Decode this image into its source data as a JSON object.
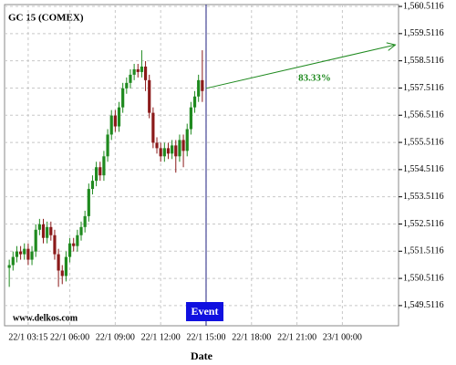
{
  "chart_data": {
    "type": "candlestick",
    "title": "GC 15 (COMEX)",
    "watermark": "www.delkos.com",
    "xlabel": "Date",
    "up_color": "#1f8a1f",
    "down_color": "#8b1a1a",
    "grid": true,
    "xlim": [
      1.69,
      27.71
    ],
    "ylim": [
      1548.77,
      1560.58
    ],
    "xticks": [
      {
        "value": 3.25,
        "label": "22/1 03:15"
      },
      {
        "value": 6,
        "label": "22/1 06:00"
      },
      {
        "value": 9,
        "label": "22/1 09:00"
      },
      {
        "value": 12,
        "label": "22/1 12:00"
      },
      {
        "value": 15,
        "label": "22/1 15:00"
      },
      {
        "value": 18,
        "label": "22/1 18:00"
      },
      {
        "value": 21,
        "label": "22/1 21:00"
      },
      {
        "value": 24,
        "label": "23/1 00:00"
      }
    ],
    "yticks": [
      {
        "value": 1549.5116,
        "label": "1,549.5116"
      },
      {
        "value": 1550.5116,
        "label": "1,550.5116"
      },
      {
        "value": 1551.5116,
        "label": "1,551.5116"
      },
      {
        "value": 1552.5116,
        "label": "1,552.5116"
      },
      {
        "value": 1553.5116,
        "label": "1,553.5116"
      },
      {
        "value": 1554.5116,
        "label": "1,554.5116"
      },
      {
        "value": 1555.5116,
        "label": "1,555.5116"
      },
      {
        "value": 1556.5116,
        "label": "1,556.5116"
      },
      {
        "value": 1557.5116,
        "label": "1,557.5116"
      },
      {
        "value": 1558.5116,
        "label": "1,558.5116"
      },
      {
        "value": 1559.5116,
        "label": "1,559.5116"
      },
      {
        "value": 1560.5116,
        "label": "1,560.5116"
      }
    ],
    "event": {
      "x": 15,
      "label": "Event",
      "color": "#1010e0"
    },
    "forecast": {
      "x": [
        15,
        27.5
      ],
      "y": [
        1557.5,
        1559.1
      ],
      "label": "83.33%",
      "color": "#1f8a1f"
    },
    "x": [
      2,
      2.25,
      2.5,
      2.75,
      3,
      3.25,
      3.5,
      3.75,
      4,
      4.25,
      4.5,
      4.75,
      5,
      5.25,
      5.5,
      5.75,
      6,
      6.25,
      6.5,
      6.75,
      7,
      7.25,
      7.5,
      7.75,
      8,
      8.25,
      8.5,
      8.75,
      9,
      9.25,
      9.5,
      9.75,
      10,
      10.25,
      10.5,
      10.75,
      11,
      11.25,
      11.5,
      11.75,
      12,
      12.25,
      12.5,
      12.75,
      13,
      13.25,
      13.5,
      13.75,
      14,
      14.25,
      14.5,
      14.75
    ],
    "open": [
      1550.9,
      1551.0,
      1551.3,
      1551.5,
      1551.4,
      1551.6,
      1551.2,
      1551.5,
      1552.3,
      1552.5,
      1552.0,
      1552.4,
      1552.1,
      1551.4,
      1550.8,
      1550.6,
      1551.3,
      1551.8,
      1551.7,
      1552.1,
      1552.4,
      1552.8,
      1553.8,
      1554.1,
      1554.6,
      1554.3,
      1555.0,
      1555.8,
      1556.5,
      1556.1,
      1556.8,
      1557.5,
      1557.7,
      1558.0,
      1558.2,
      1558.1,
      1558.3,
      1557.8,
      1556.6,
      1555.5,
      1555.3,
      1555.0,
      1555.3,
      1555.1,
      1555.4,
      1555.0,
      1555.6,
      1555.2,
      1556.0,
      1556.8,
      1557.2,
      1557.8
    ],
    "high": [
      1551.2,
      1551.5,
      1551.7,
      1551.7,
      1551.8,
      1551.8,
      1551.7,
      1552.5,
      1552.7,
      1552.7,
      1552.6,
      1552.6,
      1552.3,
      1551.6,
      1551.0,
      1551.5,
      1552.0,
      1552.0,
      1552.3,
      1552.6,
      1553.0,
      1554.0,
      1554.3,
      1554.8,
      1554.8,
      1555.2,
      1556.0,
      1556.7,
      1556.7,
      1557.0,
      1557.7,
      1557.9,
      1558.2,
      1558.4,
      1558.4,
      1558.9,
      1558.5,
      1558.0,
      1556.8,
      1555.7,
      1555.5,
      1555.5,
      1555.5,
      1555.6,
      1555.6,
      1555.8,
      1555.8,
      1556.2,
      1557.0,
      1557.4,
      1558.0,
      1558.9
    ],
    "low": [
      1550.2,
      1550.8,
      1551.1,
      1551.2,
      1551.2,
      1551.0,
      1551.0,
      1551.3,
      1552.1,
      1551.8,
      1551.8,
      1551.9,
      1551.2,
      1550.2,
      1550.3,
      1550.4,
      1551.1,
      1551.5,
      1551.5,
      1551.9,
      1552.2,
      1552.6,
      1553.6,
      1553.9,
      1554.1,
      1554.1,
      1554.8,
      1555.6,
      1555.9,
      1555.9,
      1556.6,
      1557.3,
      1557.5,
      1557.8,
      1557.9,
      1557.9,
      1557.4,
      1556.4,
      1555.3,
      1555.1,
      1554.8,
      1554.8,
      1554.9,
      1554.9,
      1554.4,
      1554.8,
      1554.6,
      1555.0,
      1555.8,
      1556.6,
      1557.0,
      1557.0
    ],
    "close": [
      1551.0,
      1551.3,
      1551.5,
      1551.4,
      1551.6,
      1551.2,
      1551.5,
      1552.3,
      1552.5,
      1552.0,
      1552.4,
      1552.1,
      1551.4,
      1550.8,
      1550.6,
      1551.3,
      1551.8,
      1551.7,
      1552.1,
      1552.4,
      1552.8,
      1553.8,
      1554.1,
      1554.6,
      1554.3,
      1555.0,
      1555.8,
      1556.5,
      1556.1,
      1556.8,
      1557.5,
      1557.7,
      1558.0,
      1558.2,
      1558.1,
      1558.3,
      1557.8,
      1556.6,
      1555.5,
      1555.3,
      1555.0,
      1555.3,
      1555.1,
      1555.4,
      1555.0,
      1555.6,
      1555.2,
      1556.0,
      1556.8,
      1557.2,
      1557.8,
      1557.4
    ]
  }
}
